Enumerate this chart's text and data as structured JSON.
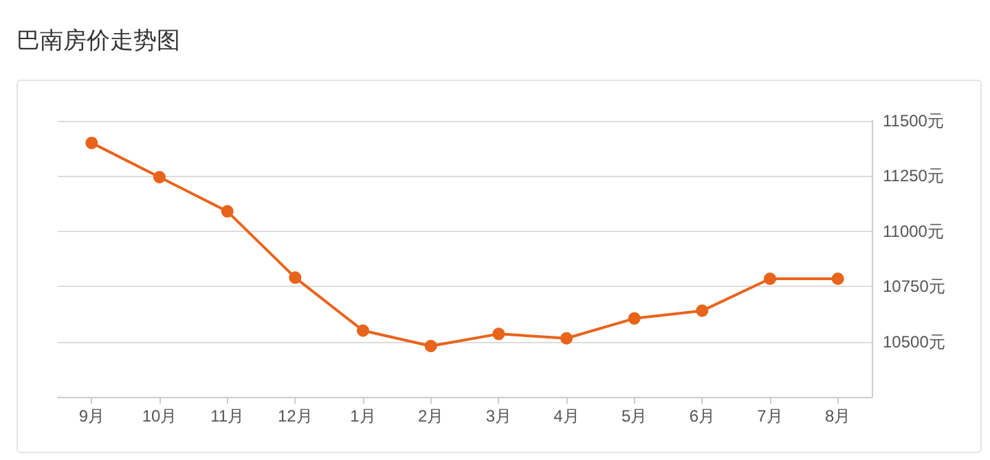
{
  "chart_data": {
    "type": "line",
    "title": "巴南房价走势图",
    "categories": [
      "9月",
      "10月",
      "11月",
      "12月",
      "1月",
      "2月",
      "3月",
      "4月",
      "5月",
      "6月",
      "7月",
      "8月"
    ],
    "series": [
      {
        "color": "#e8641b",
        "values": [
          11400,
          11245,
          11090,
          10790,
          10550,
          10480,
          10535,
          10515,
          10605,
          10640,
          10785,
          10785
        ]
      }
    ],
    "ylim": [
      10250,
      11500
    ],
    "yticks": [
      {
        "value": 10250,
        "label": null
      },
      {
        "value": 10500,
        "label": "10500元"
      },
      {
        "value": 10750,
        "label": "10750元"
      },
      {
        "value": 11000,
        "label": "11000元"
      },
      {
        "value": 11250,
        "label": "11250元"
      },
      {
        "value": 11500,
        "label": "11500元"
      }
    ],
    "grid": "y",
    "marker": "circle",
    "line_style": "solid"
  }
}
